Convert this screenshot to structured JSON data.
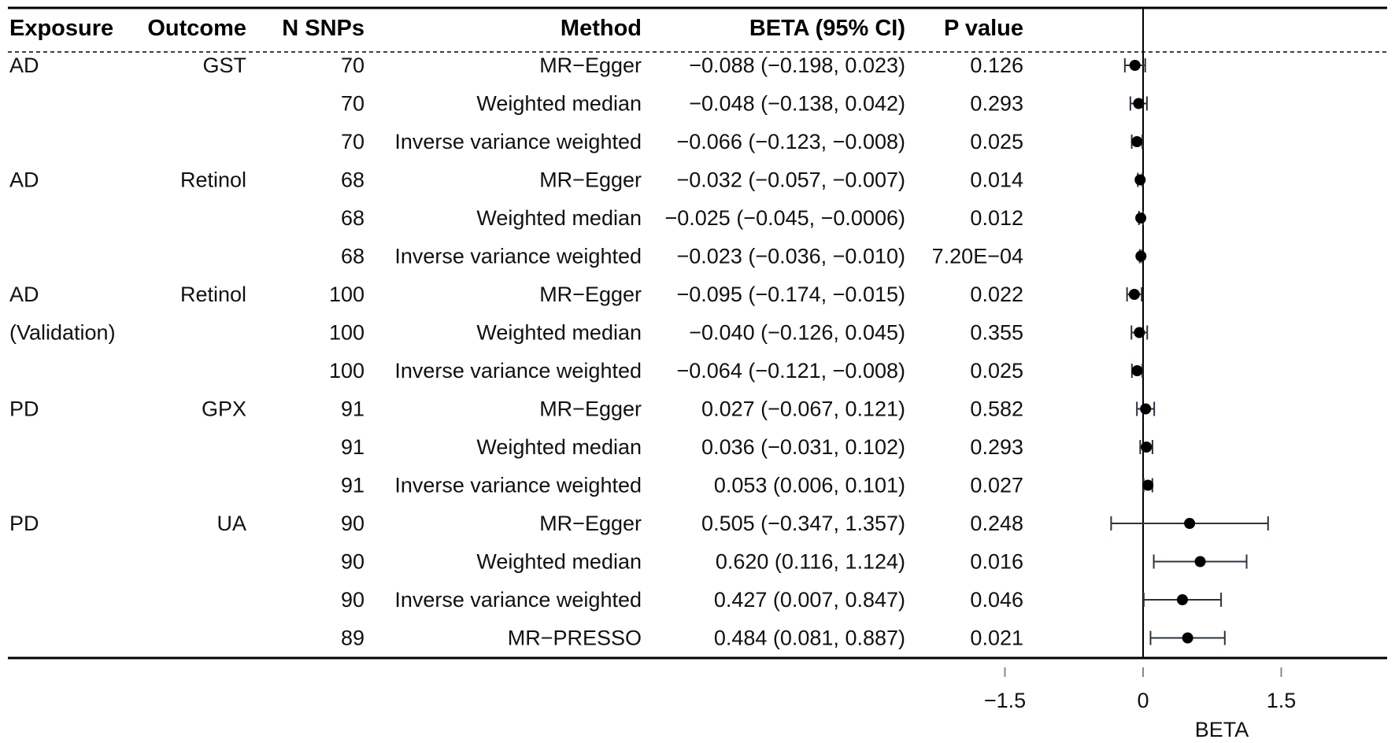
{
  "chart_data": {
    "type": "forest",
    "columns": [
      "Exposure",
      "Outcome",
      "N SNPs",
      "Method",
      "BETA (95% CI)",
      "P value"
    ],
    "rows": [
      {
        "exposure": "AD",
        "outcome": "GST",
        "n_snps": "70",
        "method": "MR−Egger",
        "ci_text": "−0.088 (−0.198, 0.023)",
        "p": "0.126",
        "beta": -0.088,
        "lo": -0.198,
        "hi": 0.023
      },
      {
        "exposure": "",
        "outcome": "",
        "n_snps": "70",
        "method": "Weighted median",
        "ci_text": "−0.048 (−0.138, 0.042)",
        "p": "0.293",
        "beta": -0.048,
        "lo": -0.138,
        "hi": 0.042
      },
      {
        "exposure": "",
        "outcome": "",
        "n_snps": "70",
        "method": "Inverse variance weighted",
        "ci_text": "−0.066 (−0.123, −0.008)",
        "p": "0.025",
        "beta": -0.066,
        "lo": -0.123,
        "hi": -0.008
      },
      {
        "exposure": "AD",
        "outcome": "Retinol",
        "n_snps": "68",
        "method": "MR−Egger",
        "ci_text": "−0.032 (−0.057, −0.007)",
        "p": "0.014",
        "beta": -0.032,
        "lo": -0.057,
        "hi": -0.007
      },
      {
        "exposure": "",
        "outcome": "",
        "n_snps": "68",
        "method": "Weighted median",
        "ci_text": "−0.025 (−0.045, −0.0006)",
        "p": "0.012",
        "beta": -0.025,
        "lo": -0.045,
        "hi": -0.0006
      },
      {
        "exposure": "",
        "outcome": "",
        "n_snps": "68",
        "method": "Inverse variance weighted",
        "ci_text": "−0.023 (−0.036, −0.010)",
        "p": "7.20E−04",
        "beta": -0.023,
        "lo": -0.036,
        "hi": -0.01
      },
      {
        "exposure": "AD",
        "outcome": "Retinol",
        "n_snps": "100",
        "method": "MR−Egger",
        "ci_text": "−0.095 (−0.174, −0.015)",
        "p": "0.022",
        "beta": -0.095,
        "lo": -0.174,
        "hi": -0.015
      },
      {
        "exposure": "(Validation)",
        "outcome": "",
        "n_snps": "100",
        "method": "Weighted median",
        "ci_text": "−0.040 (−0.126, 0.045)",
        "p": "0.355",
        "beta": -0.04,
        "lo": -0.126,
        "hi": 0.045
      },
      {
        "exposure": "",
        "outcome": "",
        "n_snps": "100",
        "method": "Inverse variance weighted",
        "ci_text": "−0.064 (−0.121, −0.008)",
        "p": "0.025",
        "beta": -0.064,
        "lo": -0.121,
        "hi": -0.008
      },
      {
        "exposure": "PD",
        "outcome": "GPX",
        "n_snps": "91",
        "method": "MR−Egger",
        "ci_text": "0.027 (−0.067, 0.121)",
        "p": "0.582",
        "beta": 0.027,
        "lo": -0.067,
        "hi": 0.121
      },
      {
        "exposure": "",
        "outcome": "",
        "n_snps": "91",
        "method": "Weighted median",
        "ci_text": "0.036 (−0.031, 0.102)",
        "p": "0.293",
        "beta": 0.036,
        "lo": -0.031,
        "hi": 0.102
      },
      {
        "exposure": "",
        "outcome": "",
        "n_snps": "91",
        "method": "Inverse variance weighted",
        "ci_text": "0.053 (0.006, 0.101)",
        "p": "0.027",
        "beta": 0.053,
        "lo": 0.006,
        "hi": 0.101
      },
      {
        "exposure": "PD",
        "outcome": "UA",
        "n_snps": "90",
        "method": "MR−Egger",
        "ci_text": "0.505 (−0.347, 1.357)",
        "p": "0.248",
        "beta": 0.505,
        "lo": -0.347,
        "hi": 1.357
      },
      {
        "exposure": "",
        "outcome": "",
        "n_snps": "90",
        "method": "Weighted median",
        "ci_text": "0.620 (0.116, 1.124)",
        "p": "0.016",
        "beta": 0.62,
        "lo": 0.116,
        "hi": 1.124
      },
      {
        "exposure": "",
        "outcome": "",
        "n_snps": "90",
        "method": "Inverse variance weighted",
        "ci_text": "0.427 (0.007, 0.847)",
        "p": "0.046",
        "beta": 0.427,
        "lo": 0.007,
        "hi": 0.847
      },
      {
        "exposure": "",
        "outcome": "",
        "n_snps": "89",
        "method": "MR−PRESSO",
        "ci_text": "0.484 (0.081, 0.887)",
        "p": "0.021",
        "beta": 0.484,
        "lo": 0.081,
        "hi": 0.887
      }
    ],
    "xlabel": "BETA",
    "xticks": [
      -1.5,
      0,
      1.5
    ],
    "xtick_labels": [
      "−1.5",
      "0",
      "1.5"
    ],
    "xlim": [
      -1.5,
      1.5
    ],
    "reference_line": 0
  }
}
